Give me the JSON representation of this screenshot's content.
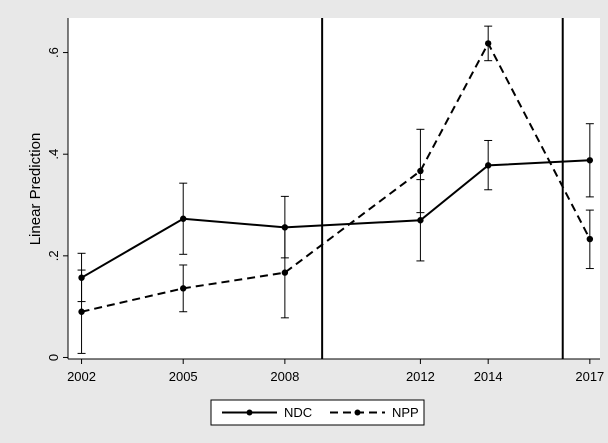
{
  "chart_data": {
    "type": "line",
    "title": "",
    "xlabel": "",
    "ylabel": "Linear Prediction",
    "xlim": [
      2001.6,
      2017.3
    ],
    "ylim": [
      -0.003,
      0.668
    ],
    "x_ticks": [
      2002,
      2005,
      2008,
      2012,
      2014,
      2017
    ],
    "x_tick_labels": [
      "2002",
      "2005",
      "2008",
      "2012",
      "2014",
      "2017"
    ],
    "y_ticks": [
      0,
      0.2,
      0.4,
      0.6
    ],
    "y_tick_labels": [
      "0",
      ".2",
      ".4",
      ".6"
    ],
    "vertical_lines": [
      2009.1,
      2016.2
    ],
    "grid": false,
    "legend_position": "bottom",
    "series": [
      {
        "name": "NDC",
        "style": "solid",
        "color": "#000000",
        "points": [
          {
            "x": 2002,
            "y": 0.157,
            "lo": 0.11,
            "hi": 0.205
          },
          {
            "x": 2005,
            "y": 0.273,
            "lo": 0.203,
            "hi": 0.343
          },
          {
            "x": 2008,
            "y": 0.256,
            "lo": 0.196,
            "hi": 0.317
          },
          {
            "x": 2012,
            "y": 0.27,
            "lo": 0.19,
            "hi": 0.35
          },
          {
            "x": 2014,
            "y": 0.378,
            "lo": 0.33,
            "hi": 0.427
          },
          {
            "x": 2017,
            "y": 0.388,
            "lo": 0.316,
            "hi": 0.46
          }
        ]
      },
      {
        "name": "NPP",
        "style": "dashed",
        "color": "#000000",
        "points": [
          {
            "x": 2002,
            "y": 0.09,
            "lo": 0.008,
            "hi": 0.172
          },
          {
            "x": 2005,
            "y": 0.136,
            "lo": 0.09,
            "hi": 0.182
          },
          {
            "x": 2008,
            "y": 0.167,
            "lo": 0.078,
            "hi": 0.256
          },
          {
            "x": 2012,
            "y": 0.367,
            "lo": 0.285,
            "hi": 0.449
          },
          {
            "x": 2014,
            "y": 0.618,
            "lo": 0.584,
            "hi": 0.652
          },
          {
            "x": 2017,
            "y": 0.233,
            "lo": 0.175,
            "hi": 0.29
          }
        ]
      }
    ]
  }
}
